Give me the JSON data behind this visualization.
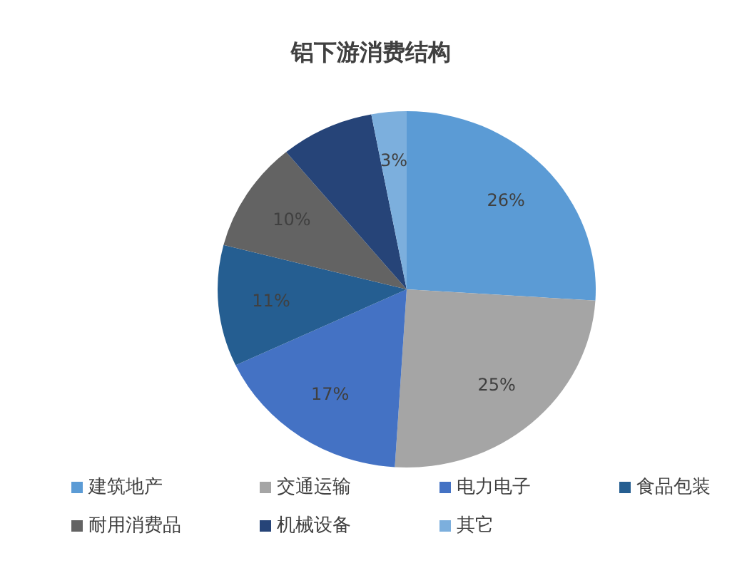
{
  "chart_data": {
    "type": "pie",
    "title": "铝下游消费结构",
    "categories": [
      "建筑地产",
      "交通运输",
      "电力电子",
      "食品包装",
      "耐用消费品",
      "机械设备",
      "其它"
    ],
    "values": [
      26,
      25,
      17,
      11,
      10,
      8,
      3
    ],
    "value_labels": [
      "26%",
      "25%",
      "17%",
      "11%",
      "10%",
      null,
      "3%"
    ],
    "colors": [
      "#5b9bd5",
      "#a5a5a5",
      "#4472c4",
      "#255e91",
      "#636363",
      "#264478",
      "#7cafdd"
    ],
    "legend": "bottom"
  }
}
